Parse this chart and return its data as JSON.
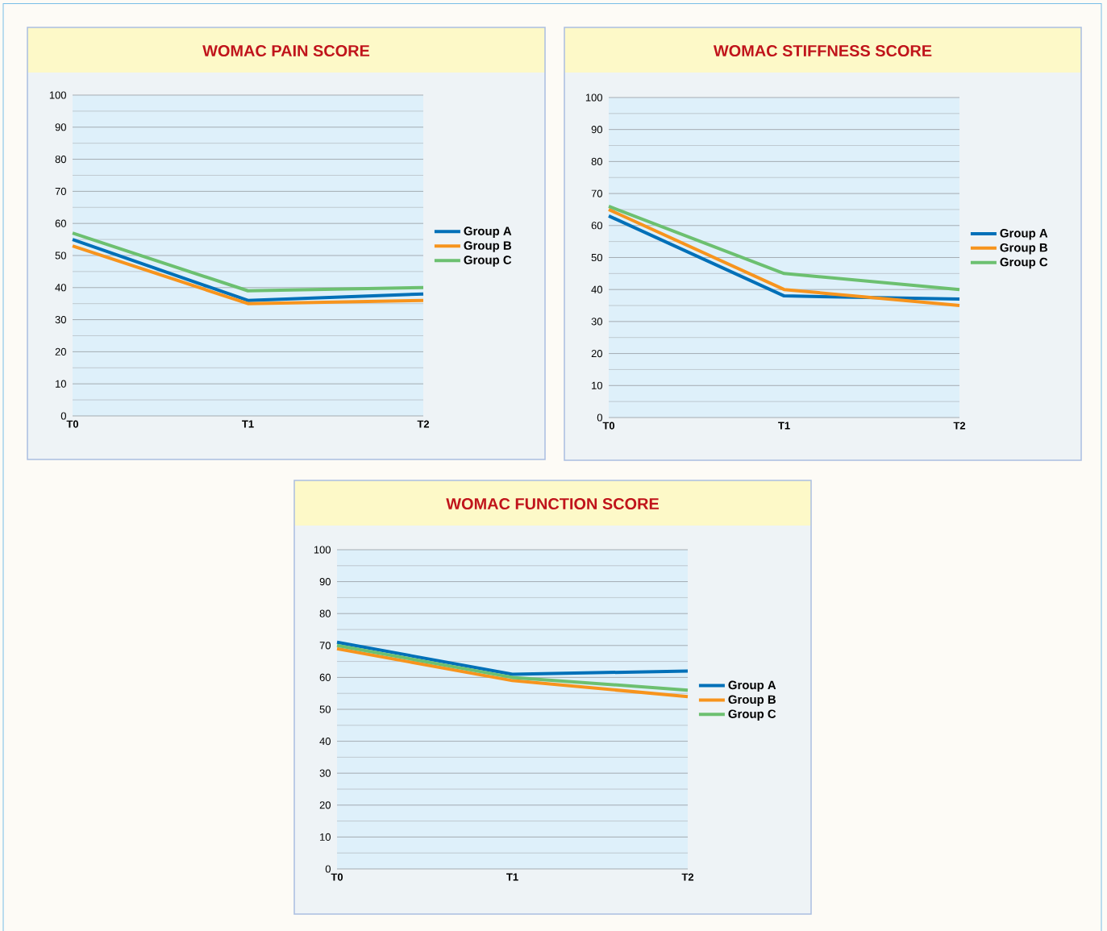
{
  "chart_data": [
    {
      "type": "line",
      "title": "WOMAC PAIN SCORE",
      "categories": [
        "T0",
        "T1",
        "T2"
      ],
      "ylim": [
        0,
        100
      ],
      "yticks": [
        0,
        10,
        20,
        30,
        40,
        50,
        60,
        70,
        80,
        90,
        100
      ],
      "grid": "y",
      "legend": "right",
      "series": [
        {
          "name": "Group A",
          "color": "#0070b8",
          "values": [
            55,
            36,
            38
          ]
        },
        {
          "name": "Group B",
          "color": "#f7941d",
          "values": [
            53,
            35,
            36
          ]
        },
        {
          "name": "Group C",
          "color": "#6cc070",
          "values": [
            57,
            39,
            40
          ]
        }
      ]
    },
    {
      "type": "line",
      "title": "WOMAC STIFFNESS SCORE",
      "categories": [
        "T0",
        "T1",
        "T2"
      ],
      "ylim": [
        0,
        100
      ],
      "yticks": [
        0,
        10,
        20,
        30,
        40,
        50,
        60,
        70,
        80,
        90,
        100
      ],
      "grid": "y",
      "legend": "right",
      "series": [
        {
          "name": "Group A",
          "color": "#0070b8",
          "values": [
            63,
            38,
            37
          ]
        },
        {
          "name": "Group B",
          "color": "#f7941d",
          "values": [
            65,
            40,
            35
          ]
        },
        {
          "name": "Group C",
          "color": "#6cc070",
          "values": [
            66,
            45,
            40
          ]
        }
      ]
    },
    {
      "type": "line",
      "title": "WOMAC FUNCTION SCORE",
      "categories": [
        "T0",
        "T1",
        "T2"
      ],
      "ylim": [
        0,
        100
      ],
      "yticks": [
        0,
        10,
        20,
        30,
        40,
        50,
        60,
        70,
        80,
        90,
        100
      ],
      "grid": "y",
      "legend": "right",
      "series": [
        {
          "name": "Group A",
          "color": "#0070b8",
          "values": [
            71,
            61,
            62
          ]
        },
        {
          "name": "Group B",
          "color": "#f7941d",
          "values": [
            69,
            59,
            54
          ]
        },
        {
          "name": "Group C",
          "color": "#6cc070",
          "values": [
            70,
            60,
            56
          ]
        }
      ]
    }
  ]
}
